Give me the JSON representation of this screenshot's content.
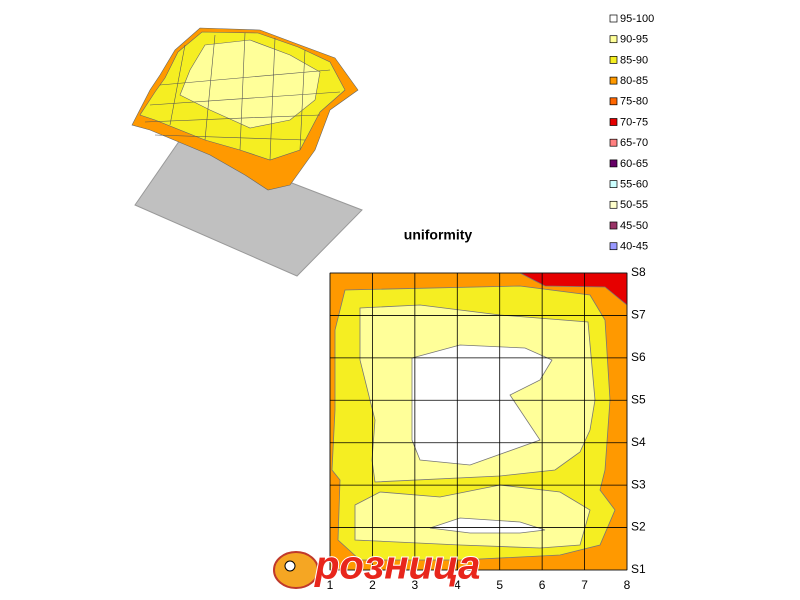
{
  "chart_data": {
    "type": "contour",
    "title": "uniformity",
    "x_categories": [
      "1",
      "2",
      "3",
      "4",
      "5",
      "6",
      "7",
      "8"
    ],
    "y_categories": [
      "S1",
      "S2",
      "S3",
      "S4",
      "S5",
      "S6",
      "S7",
      "S8"
    ],
    "series": [
      {
        "name": "95-100",
        "color": "#ffffff"
      },
      {
        "name": "90-95",
        "color": "#ffff99"
      },
      {
        "name": "85-90",
        "color": "#f5ee22"
      },
      {
        "name": "80-85",
        "color": "#ff9900"
      },
      {
        "name": "75-80",
        "color": "#ff6600"
      },
      {
        "name": "70-75",
        "color": "#e60000"
      },
      {
        "name": "65-70",
        "color": "#ff8080"
      },
      {
        "name": "60-65",
        "color": "#660066"
      },
      {
        "name": "55-60",
        "color": "#ccffff"
      },
      {
        "name": "50-55",
        "color": "#ffffcc"
      },
      {
        "name": "45-50",
        "color": "#993366"
      },
      {
        "name": "40-45",
        "color": "#9999ff"
      }
    ],
    "grid": true
  },
  "logo": {
    "text": "розница"
  }
}
